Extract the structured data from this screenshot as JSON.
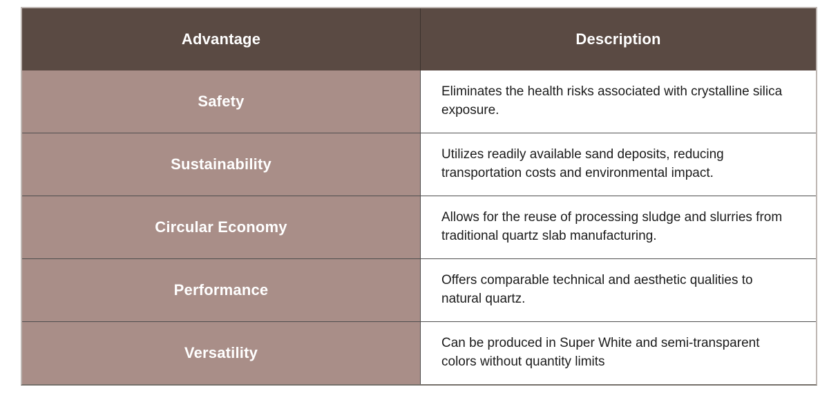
{
  "table": {
    "columns": {
      "advantage_header": "Advantage",
      "description_header": "Description"
    },
    "rows": [
      {
        "advantage": "Safety",
        "description": "Eliminates the health risks associated with crystalline silica exposure."
      },
      {
        "advantage": "Sustainability",
        "description": "Utilizes readily available sand deposits, reducing transportation costs and environmental impact."
      },
      {
        "advantage": "Circular Economy",
        "description": "Allows for the reuse of processing sludge and slurries from traditional quartz slab manufacturing."
      },
      {
        "advantage": "Performance",
        "description": "Offers comparable technical and aesthetic qualities to natural quartz."
      },
      {
        "advantage": "Versatility",
        "description": "Can be produced in Super White and semi-transparent colors without quantity limits"
      }
    ]
  },
  "colors": {
    "header_bg": "#5a4a43",
    "advantage_cell_bg": "#a98e88",
    "header_text": "#ffffff",
    "description_text": "#1b1b1b",
    "grid_line": "#4d4d4d",
    "outer_border": "#beb6b2",
    "page_bg": "#ffffff"
  }
}
